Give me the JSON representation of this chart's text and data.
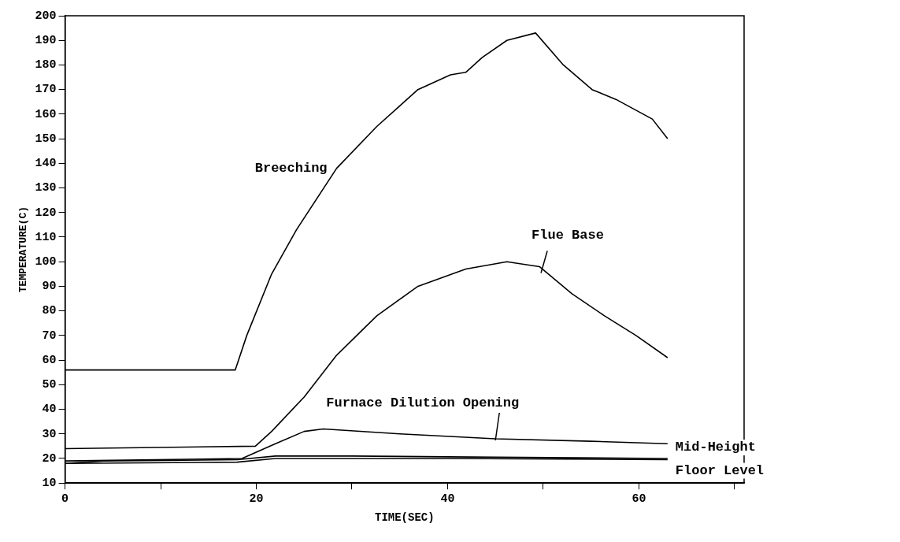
{
  "chart_data": {
    "type": "line",
    "xlabel": "TIME(SEC)",
    "ylabel": "TEMPERATURE(C)",
    "xlim": [
      0,
      71
    ],
    "xticks": [
      0,
      {
        "value": 10,
        "label": null
      },
      20,
      {
        "value": 30,
        "label": null
      },
      40,
      {
        "value": 50,
        "label": null
      },
      60,
      {
        "value": 70,
        "label": null
      }
    ],
    "ylim": [
      10,
      200
    ],
    "yticks": [
      10,
      20,
      30,
      40,
      50,
      60,
      70,
      80,
      90,
      100,
      110,
      120,
      130,
      140,
      150,
      160,
      170,
      180,
      190,
      200
    ],
    "grid": false,
    "legend": false,
    "marker": "none",
    "line_style": "solid",
    "series": [
      {
        "name": "Breeching",
        "color": "#000000",
        "x": [
          0,
          17.8,
          19,
          21.6,
          24.2,
          28.4,
          32.6,
          36.9,
          40.3,
          41.9,
          43.6,
          46.2,
          49.2,
          52.1,
          55.1,
          57.6,
          61.4,
          63
        ],
        "values": [
          56,
          56,
          70,
          95,
          113,
          138,
          155,
          170,
          176,
          177,
          183,
          190,
          193,
          180,
          170,
          166,
          158,
          150
        ]
      },
      {
        "name": "Flue Base",
        "color": "#000000",
        "x": [
          0,
          19.9,
          21.6,
          25,
          28.4,
          32.6,
          36.9,
          41.9,
          46.2,
          49.6,
          53,
          56.4,
          59.7,
          63
        ],
        "values": [
          24,
          25,
          31,
          45,
          62,
          78,
          90,
          97,
          100,
          98,
          87,
          78,
          70,
          61
        ]
      },
      {
        "name": "Furnace Dilution Opening",
        "color": "#000000",
        "x": [
          0,
          18.5,
          22,
          25,
          27,
          35,
          45,
          55,
          63
        ],
        "values": [
          19,
          20,
          26,
          31,
          32,
          30,
          28,
          27,
          26
        ]
      },
      {
        "name": "Mid-Height",
        "color": "#000000",
        "x": [
          0,
          4,
          18,
          22,
          30,
          45,
          63
        ],
        "values": [
          18,
          19,
          19.5,
          21,
          21,
          20.5,
          20
        ]
      },
      {
        "name": "Floor Level",
        "color": "#000000",
        "x": [
          0,
          18,
          22,
          40,
          63
        ],
        "values": [
          18,
          18.5,
          20,
          20,
          19.5
        ]
      }
    ]
  }
}
